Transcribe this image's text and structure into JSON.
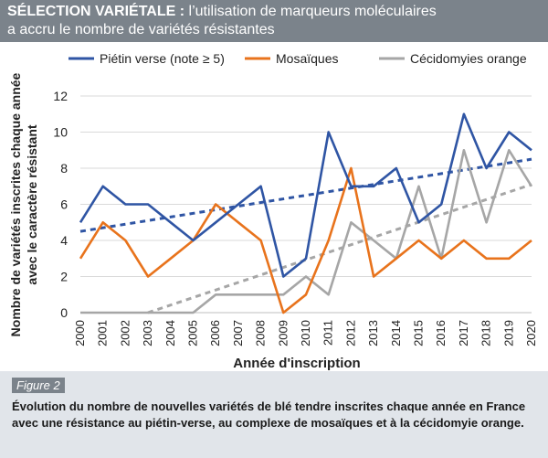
{
  "header": {
    "title_bold": "SÉLECTION VARIÉTALE : ",
    "title_rest": "l’utilisation de marqueurs moléculaires",
    "title_line2": "a accru le nombre de variétés résistantes"
  },
  "figure": {
    "label": "Figure 2",
    "caption": "Évolution du nombre de nouvelles variétés de blé tendre inscrites chaque année en France avec une résistance au piétin-verse, au complexe de mosaïques et à la cécidomyie orange."
  },
  "chart_data": {
    "type": "line",
    "xlabel": "Année d'inscription",
    "ylabel_line1": "Nombre de variétés inscrites chaque année",
    "ylabel_line2": "avec le caractère résistant",
    "x": [
      "2000",
      "2001",
      "2002",
      "2003",
      "2004",
      "2005",
      "2006",
      "2007",
      "2008",
      "2009",
      "2010",
      "2011",
      "2012",
      "2013",
      "2014",
      "2015",
      "2016",
      "2017",
      "2018",
      "2019",
      "2020"
    ],
    "ylim": [
      0,
      12
    ],
    "yticks": [
      0,
      2,
      4,
      6,
      8,
      10,
      12
    ],
    "grid": true,
    "legend_position": "top",
    "series": [
      {
        "name": "Piétin verse (note ≥ 5)",
        "color": "#2f55a4",
        "values": [
          5,
          7,
          6,
          6,
          5,
          4,
          5,
          6,
          7,
          2,
          3,
          10,
          7,
          7,
          8,
          5,
          6,
          11,
          8,
          10,
          9
        ],
        "trend": [
          4.5,
          8.5
        ]
      },
      {
        "name": "Mosaïques",
        "color": "#e8731c",
        "values": [
          3,
          5,
          4,
          2,
          3,
          4,
          6,
          5,
          4,
          0,
          1,
          4,
          8,
          2,
          3,
          4,
          3,
          4,
          3,
          3,
          4
        ],
        "trend": null
      },
      {
        "name": "Cécidomyies orange",
        "color": "#a6a6a6",
        "values": [
          0,
          0,
          0,
          0,
          0,
          0,
          1,
          1,
          1,
          1,
          2,
          1,
          5,
          4,
          3,
          7,
          3,
          9,
          5,
          9,
          7
        ],
        "trend": [
          -1.25,
          7.1
        ]
      }
    ]
  }
}
